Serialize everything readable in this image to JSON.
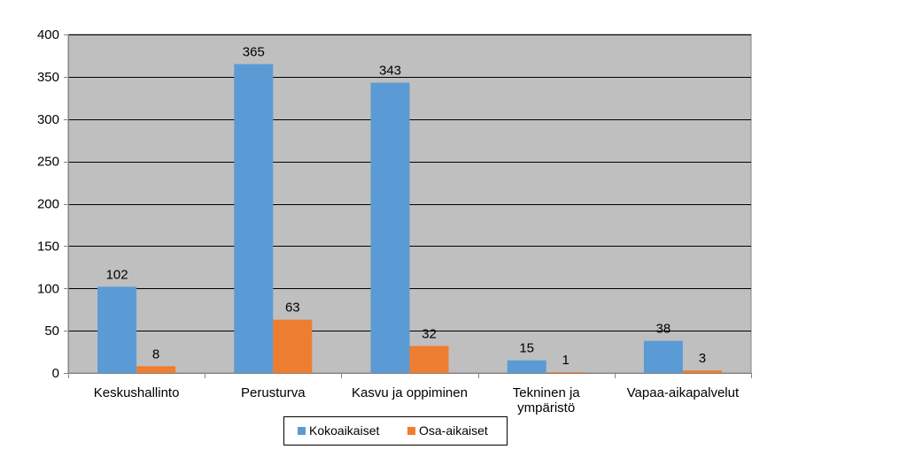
{
  "chart_data": {
    "type": "bar",
    "categories": [
      [
        "Keskushallinto"
      ],
      [
        "Perusturva"
      ],
      [
        "Kasvu ja oppiminen"
      ],
      [
        "Tekninen ja",
        "ympäristö"
      ],
      [
        "Vapaa-aikapalvelut"
      ]
    ],
    "series": [
      {
        "name": "Kokoaikaiset",
        "color": "#5b9bd5",
        "values": [
          102,
          365,
          343,
          15,
          38
        ]
      },
      {
        "name": "Osa-aikaiset",
        "color": "#ed7d31",
        "values": [
          8,
          63,
          32,
          1,
          3
        ]
      }
    ],
    "ylim": [
      0,
      400
    ],
    "yticks": [
      0,
      50,
      100,
      150,
      200,
      250,
      300,
      350,
      400
    ],
    "grid": true,
    "plot_background": "#bfbfbf",
    "legend_position": "bottom",
    "title": "",
    "xlabel": "",
    "ylabel": ""
  }
}
